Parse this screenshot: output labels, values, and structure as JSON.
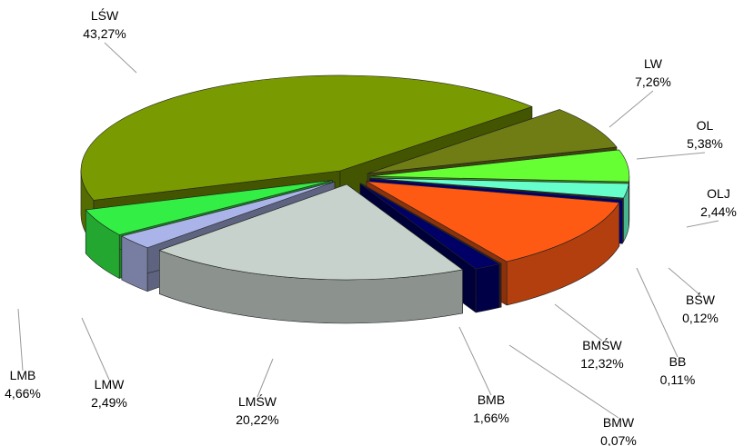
{
  "chart_data": {
    "type": "pie3d",
    "categories": [
      "LŚW",
      "LW",
      "OL",
      "OLJ",
      "BŚW",
      "BB",
      "BMŚW",
      "BMW",
      "BMB",
      "LMŚW",
      "LMW",
      "LMB"
    ],
    "values": [
      43.27,
      7.26,
      5.38,
      2.44,
      0.12,
      0.11,
      12.32,
      0.07,
      1.66,
      20.22,
      2.49,
      4.66
    ],
    "value_labels": [
      "43,27%",
      "7,26%",
      "5,38%",
      "2,44%",
      "0,12%",
      "0,11%",
      "12,32%",
      "0,07%",
      "1,66%",
      "20,22%",
      "2,49%",
      "4,66%"
    ],
    "colors": [
      "#7a9a01",
      "#6f7d14",
      "#66ff33",
      "#66ffcc",
      "#8ca000",
      "#0000cc",
      "#ff5a14",
      "#8b2500",
      "#000066",
      "#c8d2cc",
      "#aab4e8",
      "#33ee44"
    ]
  }
}
